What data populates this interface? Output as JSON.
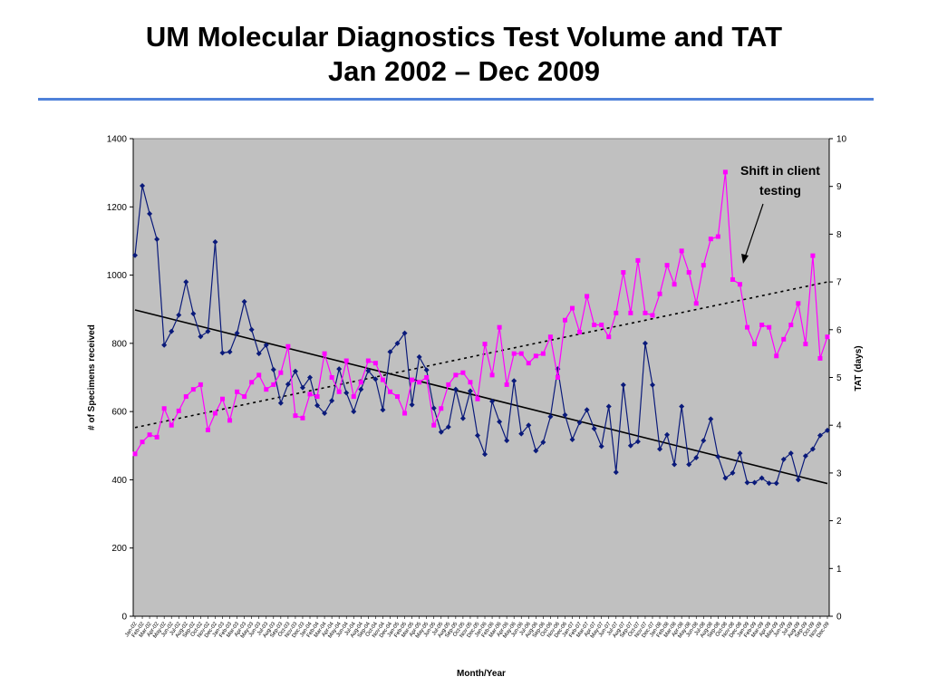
{
  "slide": {
    "title_line1": "UM Molecular Diagnostics Test Volume and TAT",
    "title_line2": "Jan 2002 – Dec 2009",
    "rule_color": "#4f81d9"
  },
  "chart_data": {
    "type": "line",
    "plot_background": "#c0c0c0",
    "grid": false,
    "legend": "none",
    "xlabel": "Month/Year",
    "ylabel_left": "# of Specimens received",
    "ylabel_right": "TAT (days)",
    "ylim_left": [
      0,
      1400
    ],
    "ylim_right": [
      0,
      10
    ],
    "yticks_left": [
      0,
      200,
      400,
      600,
      800,
      1000,
      1200,
      1400
    ],
    "yticks_right": [
      0,
      1,
      2,
      3,
      4,
      5,
      6,
      7,
      8,
      9,
      10
    ],
    "x_start": "Jan-02",
    "x_end": "Dec-09",
    "series": [
      {
        "axis": "left",
        "color": "#0a1a7a",
        "marker": "diamond",
        "values": [
          1058,
          1262,
          1180,
          1105,
          795,
          835,
          883,
          980,
          887,
          820,
          835,
          1097,
          772,
          775,
          830,
          922,
          840,
          770,
          795,
          723,
          625,
          680,
          718,
          670,
          700,
          618,
          595,
          632,
          725,
          655,
          600,
          665,
          720,
          695,
          605,
          775,
          800,
          830,
          620,
          760,
          722,
          610,
          540,
          555,
          665,
          580,
          660,
          530,
          475,
          630,
          570,
          515,
          690,
          535,
          560,
          485,
          510,
          585,
          725,
          590,
          518,
          568,
          605,
          550,
          498,
          615,
          422,
          678,
          500,
          512,
          800,
          678,
          490,
          532,
          445,
          615,
          445,
          465,
          515,
          578,
          468,
          405,
          420,
          478,
          392,
          392,
          405,
          390,
          390,
          460,
          478,
          400,
          470,
          490,
          530,
          545
        ]
      },
      {
        "axis": "right",
        "color": "#ff00ff",
        "marker": "square",
        "values": [
          3.4,
          3.65,
          3.8,
          3.75,
          4.35,
          4.0,
          4.3,
          4.6,
          4.75,
          4.85,
          3.9,
          4.25,
          4.55,
          4.1,
          4.7,
          4.6,
          4.9,
          5.05,
          4.75,
          4.85,
          5.1,
          5.65,
          4.2,
          4.15,
          4.65,
          4.6,
          5.5,
          5.0,
          4.7,
          5.35,
          4.6,
          4.9,
          5.35,
          5.3,
          4.95,
          4.7,
          4.6,
          4.25,
          4.95,
          4.9,
          5.0,
          4.0,
          4.35,
          4.85,
          5.05,
          5.1,
          4.9,
          4.55,
          5.7,
          5.05,
          6.05,
          4.85,
          5.5,
          5.5,
          5.3,
          5.45,
          5.5,
          5.85,
          5.0,
          6.2,
          6.45,
          5.95,
          6.7,
          6.1,
          6.1,
          5.85,
          6.35,
          7.2,
          6.35,
          7.45,
          6.35,
          6.3,
          6.75,
          7.35,
          6.95,
          7.65,
          7.2,
          6.55,
          7.35,
          7.9,
          7.95,
          9.3,
          7.05,
          6.95,
          6.05,
          5.7,
          6.1,
          6.05,
          5.45,
          5.8,
          6.1,
          6.55,
          5.7,
          7.55,
          5.4,
          5.85
        ]
      },
      {
        "axis": "left",
        "style": "solid-trendline",
        "color": "#000000",
        "values": [
          898,
          389
        ]
      },
      {
        "axis": "right",
        "style": "dotted-trendline",
        "color": "#000000",
        "values": [
          3.95,
          7.0
        ]
      }
    ],
    "annotations": [
      {
        "text_line1": "Shift in client",
        "text_line2": "testing"
      }
    ]
  }
}
